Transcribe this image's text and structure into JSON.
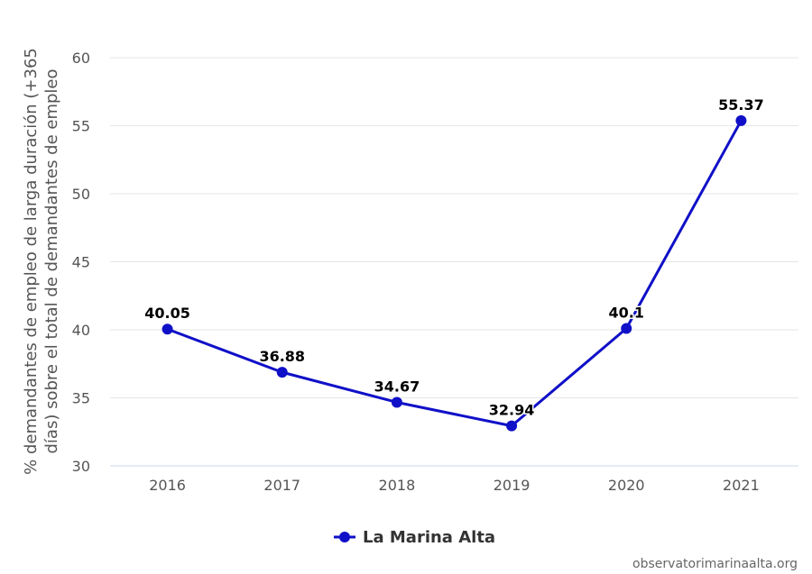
{
  "chart_data": {
    "type": "line",
    "categories": [
      "2016",
      "2017",
      "2018",
      "2019",
      "2020",
      "2021"
    ],
    "series": [
      {
        "name": "La Marina Alta",
        "values": [
          40.05,
          36.88,
          34.67,
          32.94,
          40.1,
          55.37
        ],
        "data_labels": [
          "40.05",
          "36.88",
          "34.67",
          "32.94",
          "40.1",
          "55.37"
        ],
        "color": "#1010c8"
      }
    ],
    "ylabel_lines": [
      "% demandantes de empleo de larga duración (+365",
      "días) sobre el total de demandantes de empleo"
    ],
    "ylim": [
      30,
      60
    ],
    "yticks": [
      "30",
      "35",
      "40",
      "45",
      "50",
      "55",
      "60"
    ],
    "grid": true,
    "legend_position": "bottom-center"
  },
  "credit": "observatorimarinaalta.org"
}
